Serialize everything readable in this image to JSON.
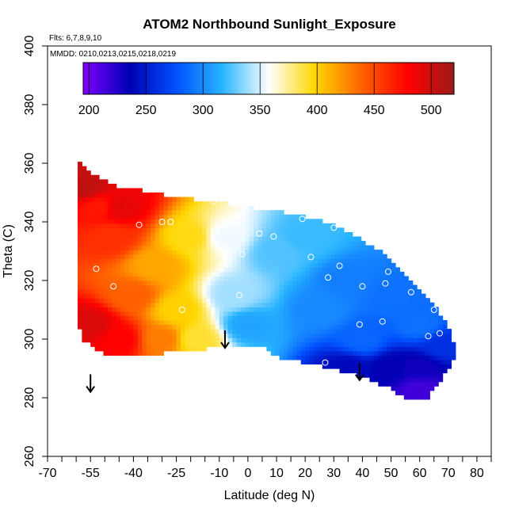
{
  "chart_data": {
    "type": "heatmap",
    "title": "ATOM2 Northbound Sunlight_Exposure",
    "subtitle_flights": "Flts: 6,7,8,9,10",
    "subtitle_dates": "MMDD: 0210,0213,0215,0218,0219",
    "xlabel": "Latitude (deg N)",
    "ylabel": "Theta (C)",
    "xlim": [
      -70,
      85
    ],
    "ylim": [
      260,
      400
    ],
    "x_ticks": [
      -70,
      -55,
      -40,
      -25,
      -10,
      0,
      10,
      20,
      30,
      40,
      50,
      60,
      70,
      80
    ],
    "x_minor_ticks": [
      -65,
      -60,
      -50,
      -45,
      -35,
      -30,
      -20,
      -15,
      -5,
      5,
      15,
      25,
      35,
      45,
      55,
      65,
      75,
      85
    ],
    "y_ticks": [
      260,
      280,
      300,
      320,
      340,
      360,
      380,
      400
    ],
    "colorbar": {
      "min": 195,
      "max": 520,
      "ticks": [
        200,
        250,
        300,
        350,
        400,
        450,
        500
      ],
      "colors": [
        "#7f00ff",
        "#0000b4",
        "#0050ff",
        "#28b4ff",
        "#ffffff",
        "#ffd700",
        "#ff6400",
        "#ff0000",
        "#9c1a1a"
      ]
    },
    "region_upper_boundary": [
      [
        -60,
        362
      ],
      [
        -57,
        358
      ],
      [
        -45,
        352
      ],
      [
        -33,
        350
      ],
      [
        -22,
        348
      ],
      [
        -12,
        347
      ],
      [
        0,
        345
      ],
      [
        15,
        343
      ],
      [
        30,
        339
      ],
      [
        45,
        331
      ],
      [
        55,
        322
      ],
      [
        63,
        314
      ],
      [
        70,
        305
      ],
      [
        73,
        295
      ]
    ],
    "region_lower_boundary": [
      [
        73,
        295
      ],
      [
        70,
        290
      ],
      [
        65,
        283
      ],
      [
        63,
        280
      ],
      [
        55,
        280
      ],
      [
        48,
        284
      ],
      [
        40,
        287
      ],
      [
        30,
        290
      ],
      [
        20,
        292
      ],
      [
        12,
        293
      ],
      [
        4,
        298
      ],
      [
        -10,
        297
      ],
      [
        -25,
        296
      ],
      [
        -38,
        294
      ],
      [
        -50,
        295
      ],
      [
        -58,
        300
      ],
      [
        -60,
        310
      ]
    ],
    "value_field": [
      {
        "lat": -57,
        "theta": 352,
        "value": 505
      },
      {
        "lat": -52,
        "theta": 345,
        "value": 470
      },
      {
        "lat": -48,
        "theta": 335,
        "value": 460
      },
      {
        "lat": -45,
        "theta": 345,
        "value": 490
      },
      {
        "lat": -40,
        "theta": 315,
        "value": 440
      },
      {
        "lat": -32,
        "theta": 325,
        "value": 415
      },
      {
        "lat": -25,
        "theta": 310,
        "value": 400
      },
      {
        "lat": -20,
        "theta": 335,
        "value": 395
      },
      {
        "lat": -55,
        "theta": 305,
        "value": 495
      },
      {
        "lat": -45,
        "theta": 300,
        "value": 480
      },
      {
        "lat": -30,
        "theta": 300,
        "value": 430
      },
      {
        "lat": -18,
        "theta": 300,
        "value": 390
      },
      {
        "lat": -8,
        "theta": 335,
        "value": 355
      },
      {
        "lat": -5,
        "theta": 315,
        "value": 340
      },
      {
        "lat": 0,
        "theta": 305,
        "value": 310
      },
      {
        "lat": 10,
        "theta": 330,
        "value": 325
      },
      {
        "lat": 20,
        "theta": 335,
        "value": 320
      },
      {
        "lat": 25,
        "theta": 310,
        "value": 300
      },
      {
        "lat": 35,
        "theta": 320,
        "value": 295
      },
      {
        "lat": 40,
        "theta": 300,
        "value": 285
      },
      {
        "lat": 50,
        "theta": 315,
        "value": 290
      },
      {
        "lat": 60,
        "theta": 305,
        "value": 290
      },
      {
        "lat": 35,
        "theta": 290,
        "value": 240
      },
      {
        "lat": 50,
        "theta": 290,
        "value": 235
      },
      {
        "lat": 60,
        "theta": 290,
        "value": 230
      },
      {
        "lat": 68,
        "theta": 298,
        "value": 260
      },
      {
        "lat": 60,
        "theta": 283,
        "value": 215
      }
    ],
    "flight_points": [
      [
        -53,
        324
      ],
      [
        -47,
        318
      ],
      [
        -38,
        339
      ],
      [
        -30,
        340
      ],
      [
        -27,
        340
      ],
      [
        -23,
        310
      ],
      [
        -12,
        347
      ],
      [
        -8,
        327
      ],
      [
        -3,
        315
      ],
      [
        -2,
        329
      ],
      [
        4,
        336
      ],
      [
        9,
        335
      ],
      [
        19,
        341
      ],
      [
        22,
        328
      ],
      [
        27,
        292
      ],
      [
        28,
        321
      ],
      [
        30,
        338
      ],
      [
        32,
        325
      ],
      [
        39,
        305
      ],
      [
        40,
        318
      ],
      [
        47,
        306
      ],
      [
        48,
        319
      ],
      [
        49,
        323
      ],
      [
        57,
        316
      ],
      [
        63,
        301
      ],
      [
        65,
        310
      ],
      [
        67,
        302
      ]
    ],
    "tropopause_arrows": [
      {
        "lat": -55,
        "theta": 288
      },
      {
        "lat": -8,
        "theta": 303
      },
      {
        "lat": 39,
        "theta": 292
      }
    ]
  }
}
